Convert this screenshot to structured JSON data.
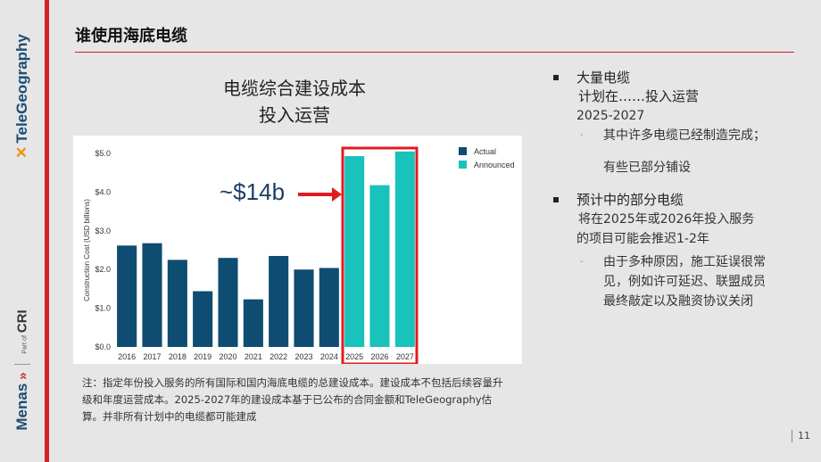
{
  "branding": {
    "telegeography": "TeleGeography",
    "menas": "Menas",
    "part_of": "Part of",
    "cri": "CRI"
  },
  "page_title": "谁使用海底电缆",
  "chart_title_line1": "电缆综合建设成本",
  "chart_title_line2": "投入运营",
  "annotation": "~$14b",
  "chart_data": {
    "type": "bar",
    "ylabel": "Construction Cost (USD billions)",
    "ylim": [
      0,
      5.0
    ],
    "ytick_values": [
      0,
      1,
      2,
      3,
      4,
      5
    ],
    "yticks": [
      "$0.0",
      "$1.0",
      "$2.0",
      "$3.0",
      "$4.0",
      "$5.0"
    ],
    "categories": [
      "2016",
      "2017",
      "2018",
      "2019",
      "2020",
      "2021",
      "2022",
      "2023",
      "2024",
      "2025",
      "2026",
      "2027"
    ],
    "values": [
      2.62,
      2.68,
      2.25,
      1.44,
      2.3,
      1.23,
      2.35,
      2.0,
      2.04,
      4.93,
      4.18,
      5.05
    ],
    "series_by_bar": [
      "Actual",
      "Actual",
      "Actual",
      "Actual",
      "Actual",
      "Actual",
      "Actual",
      "Actual",
      "Actual",
      "Announced",
      "Announced",
      "Announced"
    ],
    "legend": [
      {
        "name": "Actual",
        "color": "#0f4c71"
      },
      {
        "name": "Announced",
        "color": "#19c3bc"
      }
    ],
    "highlight_color": "#e11b22",
    "highlight_categories": [
      "2025",
      "2026",
      "2027"
    ],
    "grid": false,
    "legend_position": "top-right"
  },
  "note": "注：指定年份投入服务的所有国际和国内海底电缆的总建设成本。建设成本不包括后续容量升级和年度运营成本。2025-2027年的建设成本基于已公布的合同金额和TeleGeography估算。并非所有计划中的电缆都可能建成",
  "bullets": {
    "b1_title": "大量电缆",
    "b1_line2": "计划在……投入运营",
    "b1_line3": "2025-2027",
    "b1_sub1": "其中许多电缆已经制造完成；",
    "b1_sub2": "有些已部分铺设",
    "b2_title": "预计中的部分电缆",
    "b2_line2": "将在2025年或2026年投入服务",
    "b2_line3": "的项目可能会推迟1-2年",
    "b2_sub1": "由于多种原因，施工延误很常",
    "b2_sub2": "见，例如许可延迟、联盟成员",
    "b2_sub3": "最终敲定以及融资协议关闭"
  },
  "page_number": "11",
  "colors": {
    "accent_red": "#d3222a",
    "navy": "#1b4c74"
  }
}
